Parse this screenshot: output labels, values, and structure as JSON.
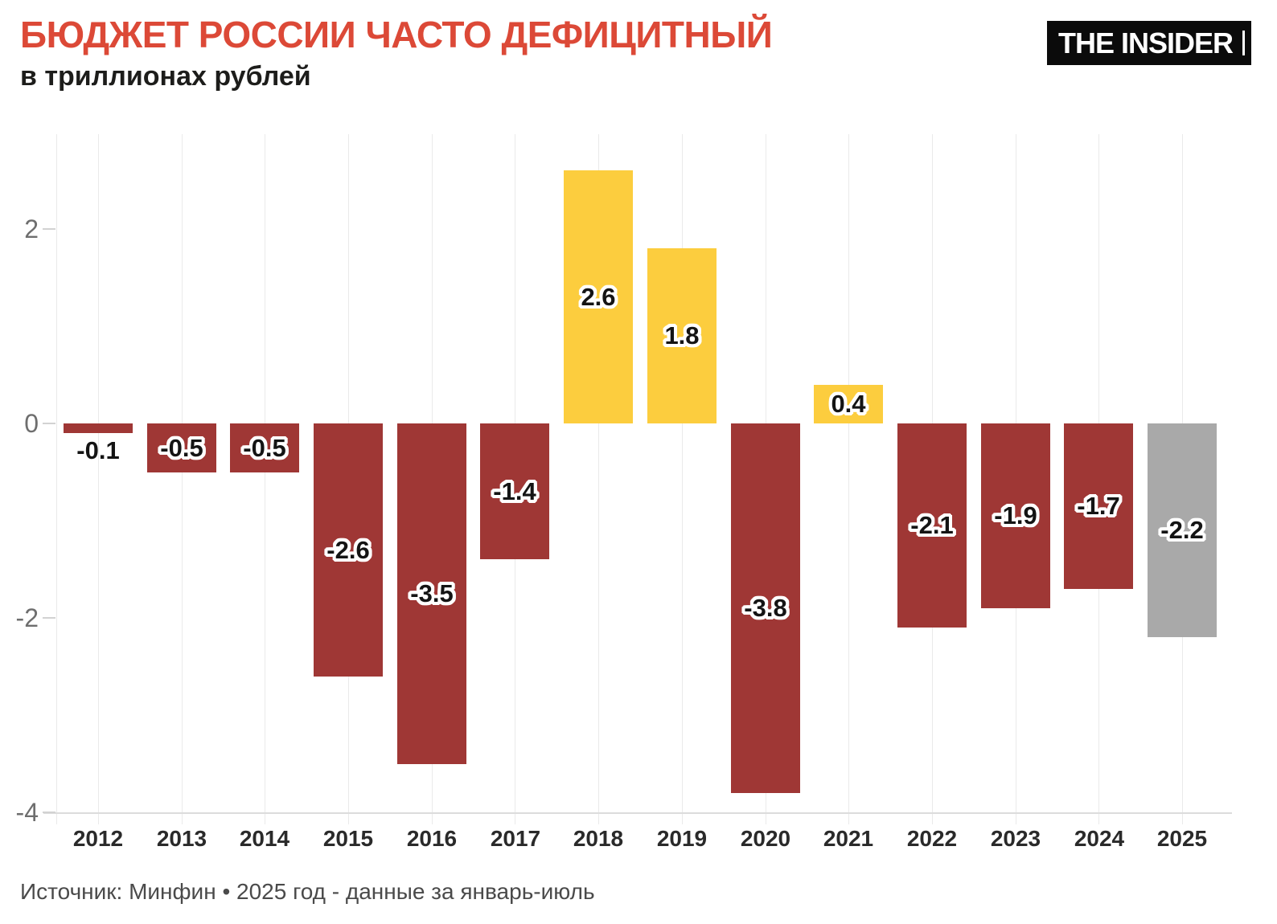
{
  "header": {
    "logo_text": "THE INSIDER"
  },
  "chart_data": {
    "type": "bar",
    "title": "БЮДЖЕТ РОССИИ ЧАСТО ДЕФИЦИТНЫЙ",
    "subtitle": "в триллионах рублей",
    "source": "Источник: Минфин • 2025 год - данные за январь-июль",
    "categories": [
      "2012",
      "2013",
      "2014",
      "2015",
      "2016",
      "2017",
      "2018",
      "2019",
      "2020",
      "2021",
      "2022",
      "2023",
      "2024",
      "2025"
    ],
    "values": [
      -0.1,
      -0.5,
      -0.5,
      -2.6,
      -3.5,
      -1.4,
      2.6,
      1.8,
      -3.8,
      0.4,
      -2.1,
      -1.9,
      -1.7,
      -2.2
    ],
    "labels": [
      "-0.1",
      "-0.5",
      "-0.5",
      "-2.6",
      "-3.5",
      "-1.4",
      "2.6",
      "1.8",
      "-3.8",
      "0.4",
      "-2.1",
      "-1.9",
      "-1.7",
      "-2.2"
    ],
    "point_styles": [
      "deficit",
      "deficit",
      "deficit",
      "deficit",
      "deficit",
      "deficit",
      "surplus",
      "surplus",
      "deficit",
      "surplus",
      "deficit",
      "deficit",
      "deficit",
      "current"
    ],
    "palette": {
      "deficit": "#9f3735",
      "surplus": "#fccd3e",
      "current": "#a9a9a9"
    },
    "title_color": "#dc4937",
    "yticks": [
      2,
      0,
      -2,
      -4
    ],
    "ylim": [
      -4.15,
      2.95
    ],
    "grid": "vertical-category-lines",
    "legend": "none"
  }
}
